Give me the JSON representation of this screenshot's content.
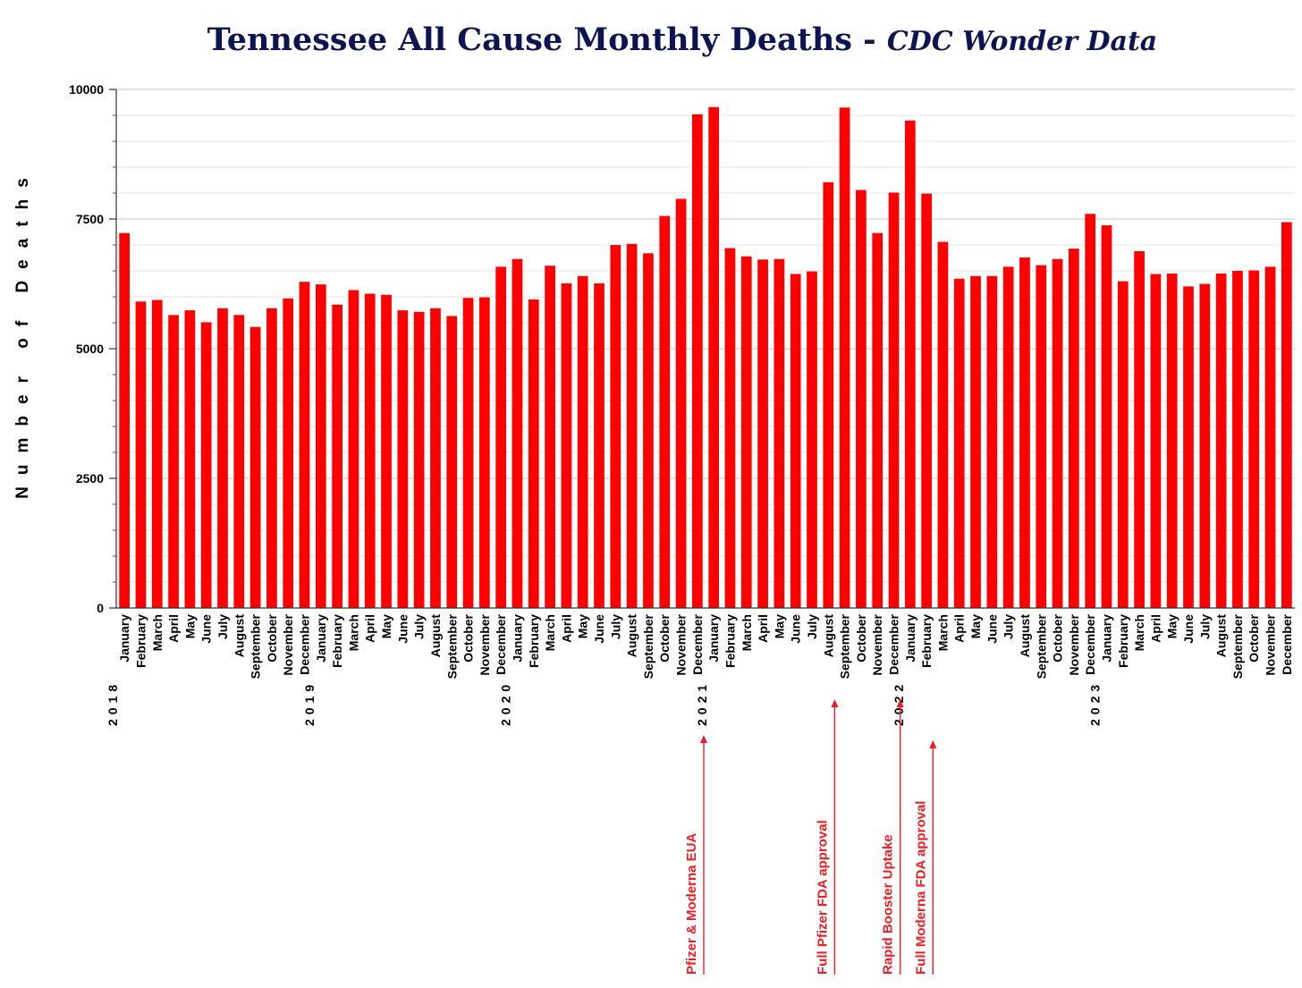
{
  "chart_data": {
    "type": "bar",
    "title": "Tennessee All Cause Monthly Deaths - ",
    "subtitle": "CDC Wonder Data",
    "xlabel": "",
    "ylabel": "Number of Deaths",
    "ylim": [
      0,
      10000
    ],
    "yticks": [
      0,
      2500,
      5000,
      7500,
      10000
    ],
    "grid": true,
    "bar_color": "#ff0000",
    "annotation_color": "#ee1c24",
    "categories": [
      "January",
      "February",
      "March",
      "April",
      "May",
      "June",
      "July",
      "August",
      "September",
      "October",
      "November",
      "December",
      "January",
      "February",
      "March",
      "April",
      "May",
      "June",
      "July",
      "August",
      "September",
      "October",
      "November",
      "December",
      "January",
      "February",
      "March",
      "April",
      "May",
      "June",
      "July",
      "August",
      "September",
      "October",
      "November",
      "December",
      "January",
      "February",
      "March",
      "April",
      "May",
      "June",
      "July",
      "August",
      "September",
      "October",
      "November",
      "December",
      "January",
      "February",
      "March",
      "April",
      "May",
      "June",
      "July",
      "August",
      "September",
      "October",
      "November",
      "December",
      "January",
      "February",
      "March",
      "April",
      "May",
      "June",
      "July",
      "August",
      "September",
      "October",
      "November",
      "December"
    ],
    "years": [
      {
        "label": "2018",
        "index": 0
      },
      {
        "label": "2019",
        "index": 12
      },
      {
        "label": "2020",
        "index": 24
      },
      {
        "label": "2021",
        "index": 36
      },
      {
        "label": "2022",
        "index": 48
      },
      {
        "label": "2023",
        "index": 60
      }
    ],
    "values": [
      7230,
      5910,
      5940,
      5650,
      5740,
      5510,
      5780,
      5650,
      5420,
      5780,
      5970,
      6290,
      6240,
      5850,
      6130,
      6060,
      6040,
      5740,
      5710,
      5780,
      5630,
      5980,
      5990,
      6580,
      6730,
      5950,
      6600,
      6260,
      6400,
      6260,
      7000,
      7020,
      6840,
      7560,
      7890,
      9520,
      9660,
      6940,
      6780,
      6720,
      6730,
      6440,
      6490,
      8210,
      9650,
      8060,
      7230,
      8010,
      9400,
      7990,
      7060,
      6350,
      6400,
      6400,
      6580,
      6760,
      6610,
      6730,
      6930,
      7600,
      7380,
      6300,
      6880,
      6440,
      6450,
      6200,
      6250,
      6450,
      6500,
      6510,
      6580,
      7440
    ],
    "annotations": [
      {
        "text": "Pfizer & Moderna EUA",
        "index": 35
      },
      {
        "text": "Full Pfizer FDA approval",
        "index": 43
      },
      {
        "text": "Rapid Booster Uptake",
        "index": 47
      },
      {
        "text": "Full Moderna FDA approval",
        "index": 49
      }
    ]
  }
}
